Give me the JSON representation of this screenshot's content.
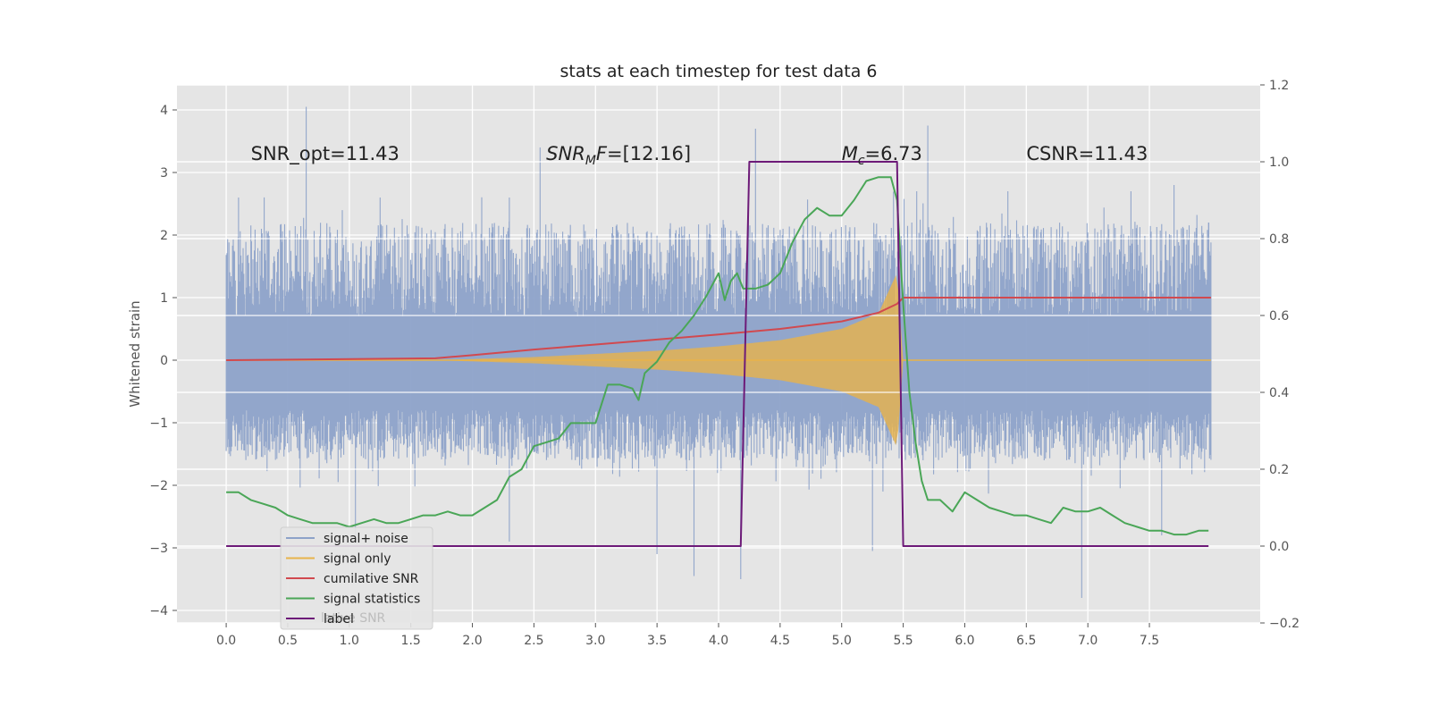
{
  "chart_data": {
    "type": "line",
    "title": "stats at each timestep for test data 6",
    "ylabel": "Whitened strain",
    "xlabel": "",
    "xlim": [
      -0.4,
      8.4
    ],
    "ylim": [
      -4.2,
      4.4
    ],
    "ylim_right": [
      -0.2,
      1.2
    ],
    "grid": true,
    "legend_position": "lower-left",
    "x_ticks": [
      "0.0",
      "0.5",
      "1.0",
      "1.5",
      "2.0",
      "2.5",
      "3.0",
      "3.5",
      "4.0",
      "4.5",
      "5.0",
      "5.5",
      "6.0",
      "6.5",
      "7.0",
      "7.5"
    ],
    "x_tick_values": [
      0,
      0.5,
      1,
      1.5,
      2,
      2.5,
      3,
      3.5,
      4,
      4.5,
      5,
      5.5,
      6,
      6.5,
      7,
      7.5
    ],
    "y_ticks": [
      "4",
      "3",
      "2",
      "1",
      "0",
      "−1",
      "−2",
      "−3",
      "−4"
    ],
    "y_tick_values": [
      4,
      3,
      2,
      1,
      0,
      -1,
      -2,
      -3,
      -4
    ],
    "y_ticks_right": [
      "1.2",
      "1.0",
      "0.8",
      "0.6",
      "0.4",
      "0.2",
      "0.0",
      "−0.2"
    ],
    "y_tick_values_right": [
      1.2,
      1.0,
      0.8,
      0.6,
      0.4,
      0.2,
      0.0,
      -0.2
    ],
    "annotations": [
      {
        "text": "SNR_opt=11.43",
        "x": 0.2,
        "y": 3.3
      },
      {
        "text": "SNR_M F=[12.16]",
        "x": 2.6,
        "y": 3.3
      },
      {
        "text": "M_c=6.73",
        "x": 5.0,
        "y": 3.3
      },
      {
        "text": "CSNR=11.43",
        "x": 6.5,
        "y": 3.3
      }
    ],
    "noise_envelope": {
      "x_range": [
        0,
        8.0
      ],
      "typical_band": [
        -1.6,
        2.2
      ],
      "spikes_up": [
        [
          0.65,
          4.05
        ],
        [
          2.55,
          3.4
        ],
        [
          4.3,
          3.7
        ],
        [
          5.7,
          3.75
        ],
        [
          0.1,
          2.6
        ],
        [
          1.25,
          2.6
        ],
        [
          2.3,
          2.6
        ],
        [
          6.35,
          2.7
        ],
        [
          7.35,
          2.7
        ],
        [
          7.7,
          2.8
        ],
        [
          7.98,
          2.2
        ]
      ],
      "spikes_down": [
        [
          3.5,
          -3.1
        ],
        [
          3.8,
          -3.45
        ],
        [
          4.18,
          -3.5
        ],
        [
          5.25,
          -3.05
        ],
        [
          6.95,
          -3.8
        ],
        [
          1.05,
          -2.8
        ],
        [
          2.3,
          -2.9
        ],
        [
          7.6,
          -2.8
        ]
      ]
    },
    "series": [
      {
        "name": "signal+ noise",
        "color": "#8da2c9",
        "axis": "left",
        "kind": "noise"
      },
      {
        "name": "signal only",
        "color": "#e8b34a",
        "axis": "left",
        "kind": "chirp",
        "envelope": {
          "x": [
            0,
            1.7,
            2.5,
            3.5,
            4.0,
            4.5,
            5.0,
            5.3,
            5.45,
            5.5,
            8.0
          ],
          "amp": [
            0,
            0,
            0.05,
            0.15,
            0.22,
            0.32,
            0.5,
            0.75,
            1.4,
            0,
            0
          ]
        }
      },
      {
        "name": "cumilative SNR",
        "color": "#d1494f",
        "axis": "left",
        "x": [
          0,
          1.7,
          2.0,
          2.5,
          3.0,
          3.5,
          4.0,
          4.5,
          5.0,
          5.3,
          5.45,
          5.5,
          8.0
        ],
        "y": [
          0,
          0.03,
          0.08,
          0.17,
          0.25,
          0.33,
          0.41,
          0.5,
          0.62,
          0.76,
          0.9,
          1.0,
          1.0
        ]
      },
      {
        "name": "signal statistics",
        "color": "#4aa657",
        "axis": "right",
        "x": [
          0,
          0.1,
          0.2,
          0.3,
          0.4,
          0.5,
          0.6,
          0.7,
          0.8,
          0.9,
          1.0,
          1.1,
          1.2,
          1.3,
          1.4,
          1.5,
          1.6,
          1.7,
          1.8,
          1.9,
          2.0,
          2.1,
          2.2,
          2.3,
          2.4,
          2.5,
          2.6,
          2.7,
          2.8,
          2.9,
          3.0,
          3.1,
          3.2,
          3.3,
          3.35,
          3.4,
          3.5,
          3.6,
          3.7,
          3.8,
          3.9,
          4.0,
          4.05,
          4.1,
          4.15,
          4.2,
          4.3,
          4.4,
          4.5,
          4.6,
          4.7,
          4.8,
          4.9,
          5.0,
          5.1,
          5.2,
          5.3,
          5.35,
          5.4,
          5.45,
          5.5,
          5.55,
          5.6,
          5.65,
          5.7,
          5.8,
          5.9,
          6.0,
          6.1,
          6.2,
          6.3,
          6.4,
          6.5,
          6.6,
          6.7,
          6.8,
          6.9,
          7.0,
          7.1,
          7.2,
          7.3,
          7.4,
          7.5,
          7.6,
          7.7,
          7.8,
          7.9,
          7.98
        ],
        "y": [
          0.14,
          0.14,
          0.12,
          0.11,
          0.1,
          0.08,
          0.07,
          0.06,
          0.06,
          0.06,
          0.05,
          0.06,
          0.07,
          0.06,
          0.06,
          0.07,
          0.08,
          0.08,
          0.09,
          0.08,
          0.08,
          0.1,
          0.12,
          0.18,
          0.2,
          0.26,
          0.27,
          0.28,
          0.32,
          0.32,
          0.32,
          0.42,
          0.42,
          0.41,
          0.38,
          0.45,
          0.48,
          0.53,
          0.56,
          0.6,
          0.65,
          0.71,
          0.64,
          0.69,
          0.71,
          0.67,
          0.67,
          0.68,
          0.71,
          0.79,
          0.85,
          0.88,
          0.86,
          0.86,
          0.9,
          0.95,
          0.96,
          0.96,
          0.96,
          0.9,
          0.63,
          0.4,
          0.27,
          0.17,
          0.12,
          0.12,
          0.09,
          0.14,
          0.12,
          0.1,
          0.09,
          0.08,
          0.08,
          0.07,
          0.06,
          0.1,
          0.09,
          0.09,
          0.1,
          0.08,
          0.06,
          0.05,
          0.04,
          0.04,
          0.03,
          0.03,
          0.04,
          0.04
        ]
      },
      {
        "name": "label",
        "color": "#6d1a78",
        "axis": "right",
        "x": [
          0,
          4.18,
          4.25,
          5.45,
          5.5,
          7.98
        ],
        "y": [
          0.0,
          0.0,
          1.0,
          1.0,
          0.0,
          0.0
        ]
      }
    ],
    "legend_items": [
      {
        "label": "signal+ noise",
        "color": "#8da2c9"
      },
      {
        "label": "signal only",
        "color": "#e8b34a"
      },
      {
        "label": "cumilative SNR",
        "color": "#d1494f"
      },
      {
        "label": "signal statistics",
        "color": "#4aa657"
      },
      {
        "label": "label",
        "color": "#6d1a78"
      }
    ],
    "legend_ghost_text": "lative SNR"
  }
}
